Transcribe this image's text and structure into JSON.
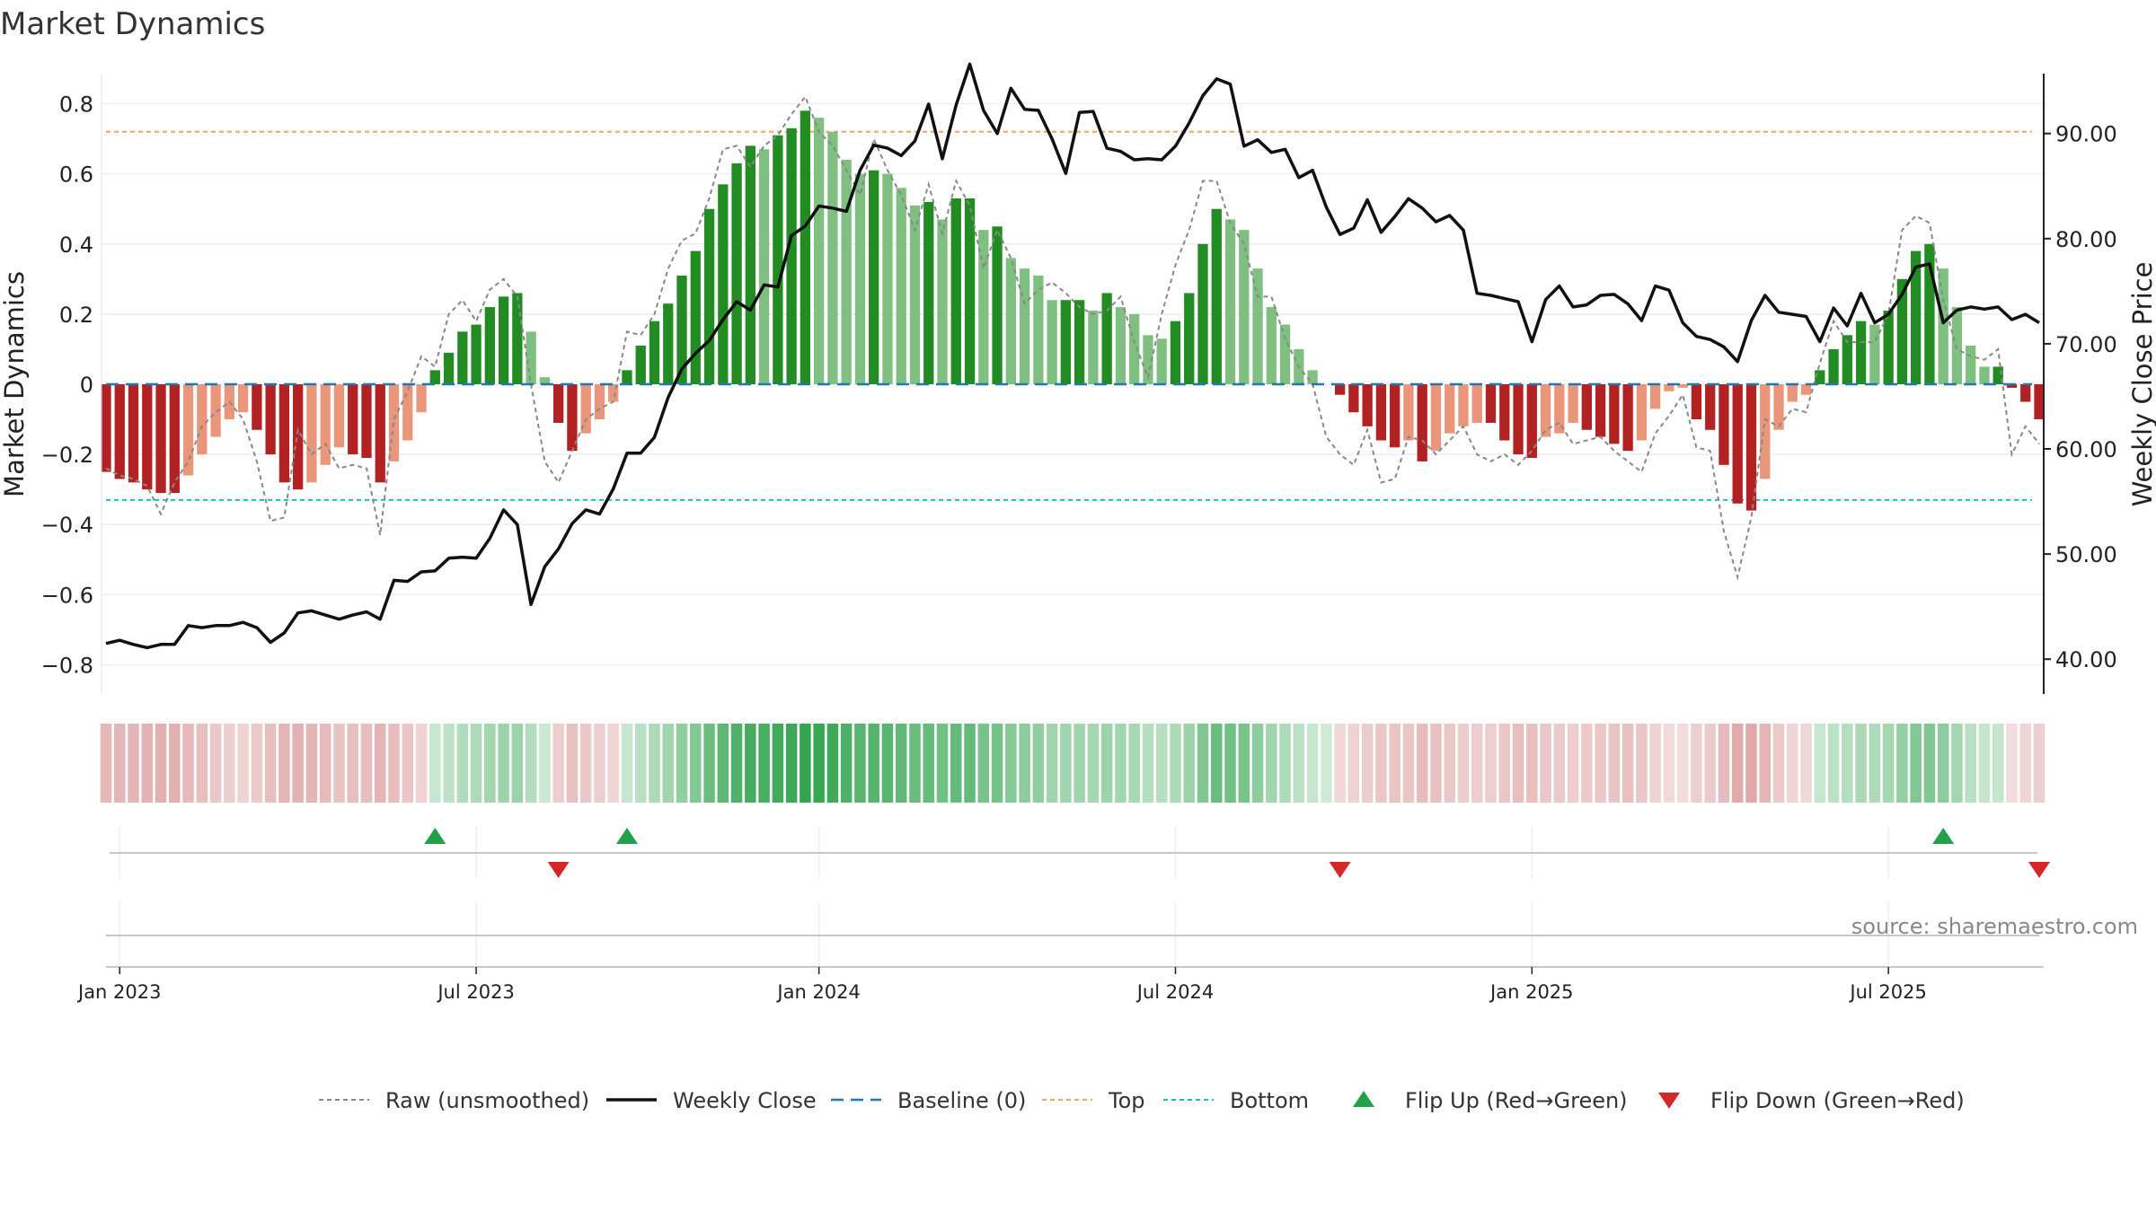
{
  "chart_data": {
    "type": "bar",
    "title": "Market Dynamics",
    "ylabel": "Market Dynamics",
    "y2label": "Weekly Close Price",
    "ylim": [
      -0.85,
      0.85
    ],
    "y2lim": [
      37.8,
      94.5
    ],
    "yticks": [
      "−0.8",
      "−0.6",
      "−0.4",
      "−0.2",
      "0",
      "0.2",
      "0.4",
      "0.6",
      "0.8"
    ],
    "y2ticks": [
      "40.00",
      "50.00",
      "60.00",
      "70.00",
      "80.00",
      "90.00"
    ],
    "xticks": [
      "Jan 2023",
      "Jul 2023",
      "Jan 2024",
      "Jul 2024",
      "Jan 2025",
      "Jul 2025"
    ],
    "top_threshold": 0.72,
    "bottom_threshold": -0.33,
    "source": "source: sharemaestro.com",
    "legend": [
      {
        "label": "Raw (unsmoothed)",
        "style": "dotted-gray"
      },
      {
        "label": "Weekly Close",
        "style": "line-black"
      },
      {
        "label": "Baseline (0)",
        "style": "dashed-blue"
      },
      {
        "label": "Top",
        "style": "dashed-orange"
      },
      {
        "label": "Bottom",
        "style": "dashed-cyan"
      },
      {
        "label": "Flip Up (Red→Green)",
        "style": "triangle-up-green"
      },
      {
        "label": "Flip Down (Green→Red)",
        "style": "triangle-down-red"
      }
    ],
    "colors": {
      "strong_up": "#228b22",
      "weak_up": "#7fbf7f",
      "strong_down": "#b22222",
      "weak_down": "#e9967a",
      "price": "#111111",
      "raw": "#888888",
      "baseline": "#1f77b4",
      "top": "#f4a460",
      "bottom": "#17becf",
      "flip_up": "#22a04b",
      "flip_down": "#d62728"
    },
    "bars": [
      -0.25,
      -0.27,
      -0.28,
      -0.3,
      -0.31,
      -0.31,
      -0.26,
      -0.2,
      -0.15,
      -0.1,
      -0.08,
      -0.13,
      -0.2,
      -0.28,
      -0.3,
      -0.28,
      -0.23,
      -0.18,
      -0.2,
      -0.21,
      -0.28,
      -0.22,
      -0.16,
      -0.08,
      0.04,
      0.09,
      0.15,
      0.17,
      0.22,
      0.25,
      0.26,
      0.15,
      0.02,
      -0.11,
      -0.19,
      -0.14,
      -0.1,
      -0.05,
      0.04,
      0.11,
      0.18,
      0.23,
      0.31,
      0.38,
      0.5,
      0.57,
      0.63,
      0.68,
      0.67,
      0.71,
      0.73,
      0.78,
      0.76,
      0.72,
      0.64,
      0.6,
      0.61,
      0.6,
      0.56,
      0.51,
      0.52,
      0.47,
      0.53,
      0.53,
      0.44,
      0.45,
      0.36,
      0.33,
      0.31,
      0.24,
      0.24,
      0.24,
      0.21,
      0.26,
      0.22,
      0.2,
      0.14,
      0.13,
      0.18,
      0.26,
      0.4,
      0.5,
      0.47,
      0.44,
      0.33,
      0.22,
      0.17,
      0.1,
      0.04,
      0.0,
      -0.03,
      -0.08,
      -0.12,
      -0.16,
      -0.18,
      -0.16,
      -0.22,
      -0.19,
      -0.14,
      -0.12,
      -0.11,
      -0.11,
      -0.16,
      -0.2,
      -0.21,
      -0.15,
      -0.14,
      -0.11,
      -0.13,
      -0.15,
      -0.17,
      -0.19,
      -0.16,
      -0.07,
      -0.02,
      -0.01,
      -0.1,
      -0.13,
      -0.23,
      -0.34,
      -0.36,
      -0.27,
      -0.13,
      -0.05,
      -0.03,
      0.04,
      0.1,
      0.14,
      0.18,
      0.17,
      0.21,
      0.3,
      0.38,
      0.4,
      0.33,
      0.22,
      0.11,
      0.05,
      0.05,
      -0.01,
      -0.05,
      -0.1
    ],
    "raw": [
      -0.24,
      -0.26,
      -0.27,
      -0.29,
      -0.37,
      -0.28,
      -0.22,
      -0.12,
      -0.08,
      -0.05,
      -0.1,
      -0.22,
      -0.39,
      -0.38,
      -0.13,
      -0.2,
      -0.17,
      -0.24,
      -0.23,
      -0.24,
      -0.43,
      -0.1,
      -0.02,
      0.08,
      0.05,
      0.2,
      0.24,
      0.18,
      0.27,
      0.3,
      0.25,
      0.0,
      -0.22,
      -0.28,
      -0.19,
      -0.1,
      -0.07,
      -0.05,
      0.15,
      0.14,
      0.2,
      0.33,
      0.41,
      0.43,
      0.53,
      0.67,
      0.68,
      0.62,
      0.68,
      0.71,
      0.77,
      0.82,
      0.72,
      0.68,
      0.61,
      0.54,
      0.7,
      0.61,
      0.54,
      0.44,
      0.57,
      0.43,
      0.58,
      0.51,
      0.33,
      0.44,
      0.36,
      0.23,
      0.27,
      0.29,
      0.26,
      0.22,
      0.2,
      0.21,
      0.25,
      0.12,
      0.02,
      0.2,
      0.34,
      0.44,
      0.58,
      0.58,
      0.46,
      0.4,
      0.25,
      0.25,
      0.13,
      0.05,
      0.0,
      -0.15,
      -0.2,
      -0.23,
      -0.13,
      -0.28,
      -0.27,
      -0.15,
      -0.16,
      -0.2,
      -0.16,
      -0.12,
      -0.2,
      -0.22,
      -0.2,
      -0.23,
      -0.19,
      -0.13,
      -0.11,
      -0.17,
      -0.16,
      -0.15,
      -0.19,
      -0.22,
      -0.25,
      -0.14,
      -0.09,
      -0.03,
      -0.18,
      -0.19,
      -0.42,
      -0.55,
      -0.38,
      -0.1,
      -0.12,
      -0.07,
      -0.08,
      0.06,
      0.18,
      0.12,
      0.12,
      0.12,
      0.2,
      0.44,
      0.48,
      0.46,
      0.24,
      0.1,
      0.08,
      0.07,
      0.1,
      -0.2,
      -0.12,
      -0.17
    ],
    "price": [
      41.5,
      41.8,
      41.4,
      41.1,
      41.4,
      41.4,
      43.2,
      43.0,
      43.2,
      43.2,
      43.5,
      43.0,
      41.6,
      42.5,
      44.4,
      44.6,
      44.2,
      43.8,
      44.2,
      44.5,
      43.8,
      47.5,
      47.4,
      48.3,
      48.4,
      49.6,
      49.7,
      49.6,
      51.5,
      54.2,
      52.8,
      45.2,
      48.8,
      50.5,
      52.9,
      54.2,
      53.8,
      56.2,
      59.6,
      59.6,
      61.1,
      64.9,
      67.6,
      69.1,
      70.3,
      72.3,
      74.0,
      73.2,
      75.6,
      75.4,
      80.3,
      81.2,
      83.1,
      82.9,
      82.6,
      86.5,
      88.9,
      88.6,
      87.9,
      89.3,
      92.8,
      87.6,
      92.7,
      96.6,
      92.2,
      90.0,
      94.3,
      92.3,
      92.2,
      89.5,
      86.2,
      92.0,
      92.1,
      88.6,
      88.3,
      87.5,
      87.6,
      87.5,
      88.8,
      91.0,
      93.6,
      95.2,
      94.7,
      88.8,
      89.4,
      88.2,
      88.5,
      85.8,
      86.5,
      83.0,
      80.4,
      81.0,
      83.7,
      80.6,
      82.1,
      83.8,
      82.9,
      81.6,
      82.2,
      80.8,
      74.8,
      74.6,
      74.3,
      74.0,
      70.2,
      74.2,
      75.5,
      73.5,
      73.7,
      74.6,
      74.7,
      73.8,
      72.2,
      75.5,
      75.1,
      72.0,
      70.7,
      70.4,
      69.7,
      68.3,
      72.2,
      74.6,
      73.0,
      72.8,
      72.6,
      70.2,
      73.4,
      71.7,
      74.8,
      72.0,
      72.8,
      74.7,
      77.3,
      77.6,
      72.0,
      73.2,
      73.5,
      73.3,
      73.5,
      72.3,
      72.8,
      72.0
    ],
    "flips_up": [
      24,
      38,
      134
    ],
    "flips_down": [
      33,
      90,
      141
    ]
  }
}
